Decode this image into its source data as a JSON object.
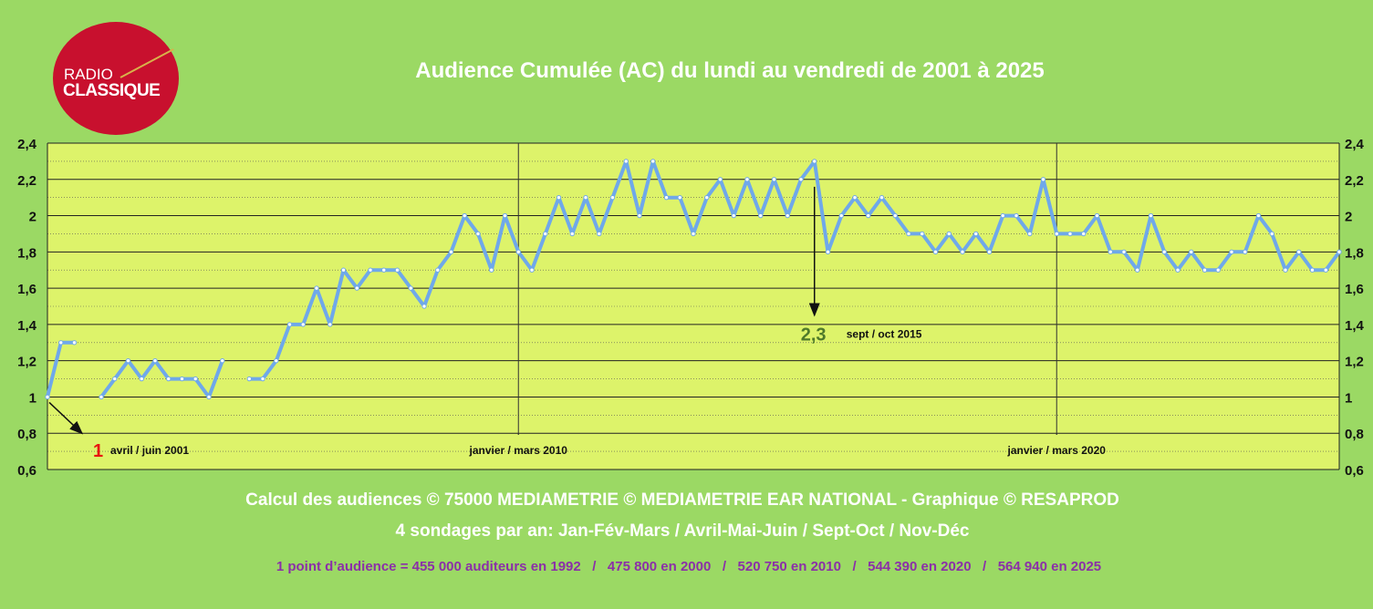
{
  "title": "Audience Cumulée (AC) du lundi au vendredi de 2001 à 2025",
  "logo": {
    "line1": "RADIO",
    "line2": "CLASSIQUE",
    "color": "#c8102e"
  },
  "footer": {
    "line1": "Calcul des audiences © 75000 MEDIAMETRIE © MEDIAMETRIE EAR NATIONAL - Graphique © RESAPROD",
    "line2": "4 sondages par an: Jan-Fév-Mars / Avril-Mai-Juin / Sept-Oct / Nov-Déc",
    "line3": "1 point d’audience = 455 000 auditeurs en 1992   /   475 800 en 2000   /   520 750 en 2010   /   544 390 en 2020   /   564 940 en 2025"
  },
  "chart_data": {
    "type": "line",
    "ylim": [
      0.6,
      2.4
    ],
    "y_ticks": [
      "2,4",
      "2,2",
      "2",
      "1,8",
      "1,6",
      "1,4",
      "1,2",
      "1",
      "0,8",
      "0,6"
    ],
    "grid": true,
    "colors": {
      "line": "#6fa8ea",
      "plot_bg": "#ddf36a"
    },
    "series": [
      {
        "values": [
          1.0,
          1.3,
          1.3,
          null,
          1.0,
          1.1,
          1.2,
          1.1,
          1.2,
          1.1,
          1.1,
          1.1,
          1.0,
          1.2,
          null,
          1.1,
          1.1,
          1.2,
          1.4,
          1.4,
          1.6,
          1.4,
          1.7,
          1.6,
          1.7,
          1.7,
          1.7,
          1.6,
          1.5,
          1.7,
          1.8,
          2.0,
          1.9,
          1.7,
          2.0,
          1.8,
          1.7,
          1.9,
          2.1,
          1.9,
          2.1,
          1.9,
          2.1,
          2.3,
          2.0,
          2.3,
          2.1,
          2.1,
          1.9,
          2.1,
          2.2,
          2.0,
          2.2,
          2.0,
          2.2,
          2.0,
          2.2,
          2.3,
          1.8,
          2.0,
          2.1,
          2.0,
          2.1,
          2.0,
          1.9,
          1.9,
          1.8,
          1.9,
          1.8,
          1.9,
          1.8,
          2.0,
          2.0,
          1.9,
          2.2,
          1.9,
          1.9,
          1.9,
          2.0,
          1.8,
          1.8,
          1.7,
          2.0,
          1.8,
          1.7,
          1.8,
          1.7,
          1.7,
          1.8,
          1.8,
          2.0,
          1.9,
          1.7,
          1.8,
          1.7,
          1.7,
          1.8
        ]
      }
    ],
    "period_markers": [
      {
        "index": 35,
        "label": "janvier / mars 2010"
      },
      {
        "index": 75,
        "label": "janvier / mars 2020"
      }
    ],
    "annotations": [
      {
        "index": 0,
        "value": "1",
        "label": "avril / juin 2001",
        "value_color": "#e8140f"
      },
      {
        "index": 57,
        "value": "2,3",
        "label": "sept / oct 2015",
        "value_color": "#4f7a2a"
      }
    ]
  }
}
